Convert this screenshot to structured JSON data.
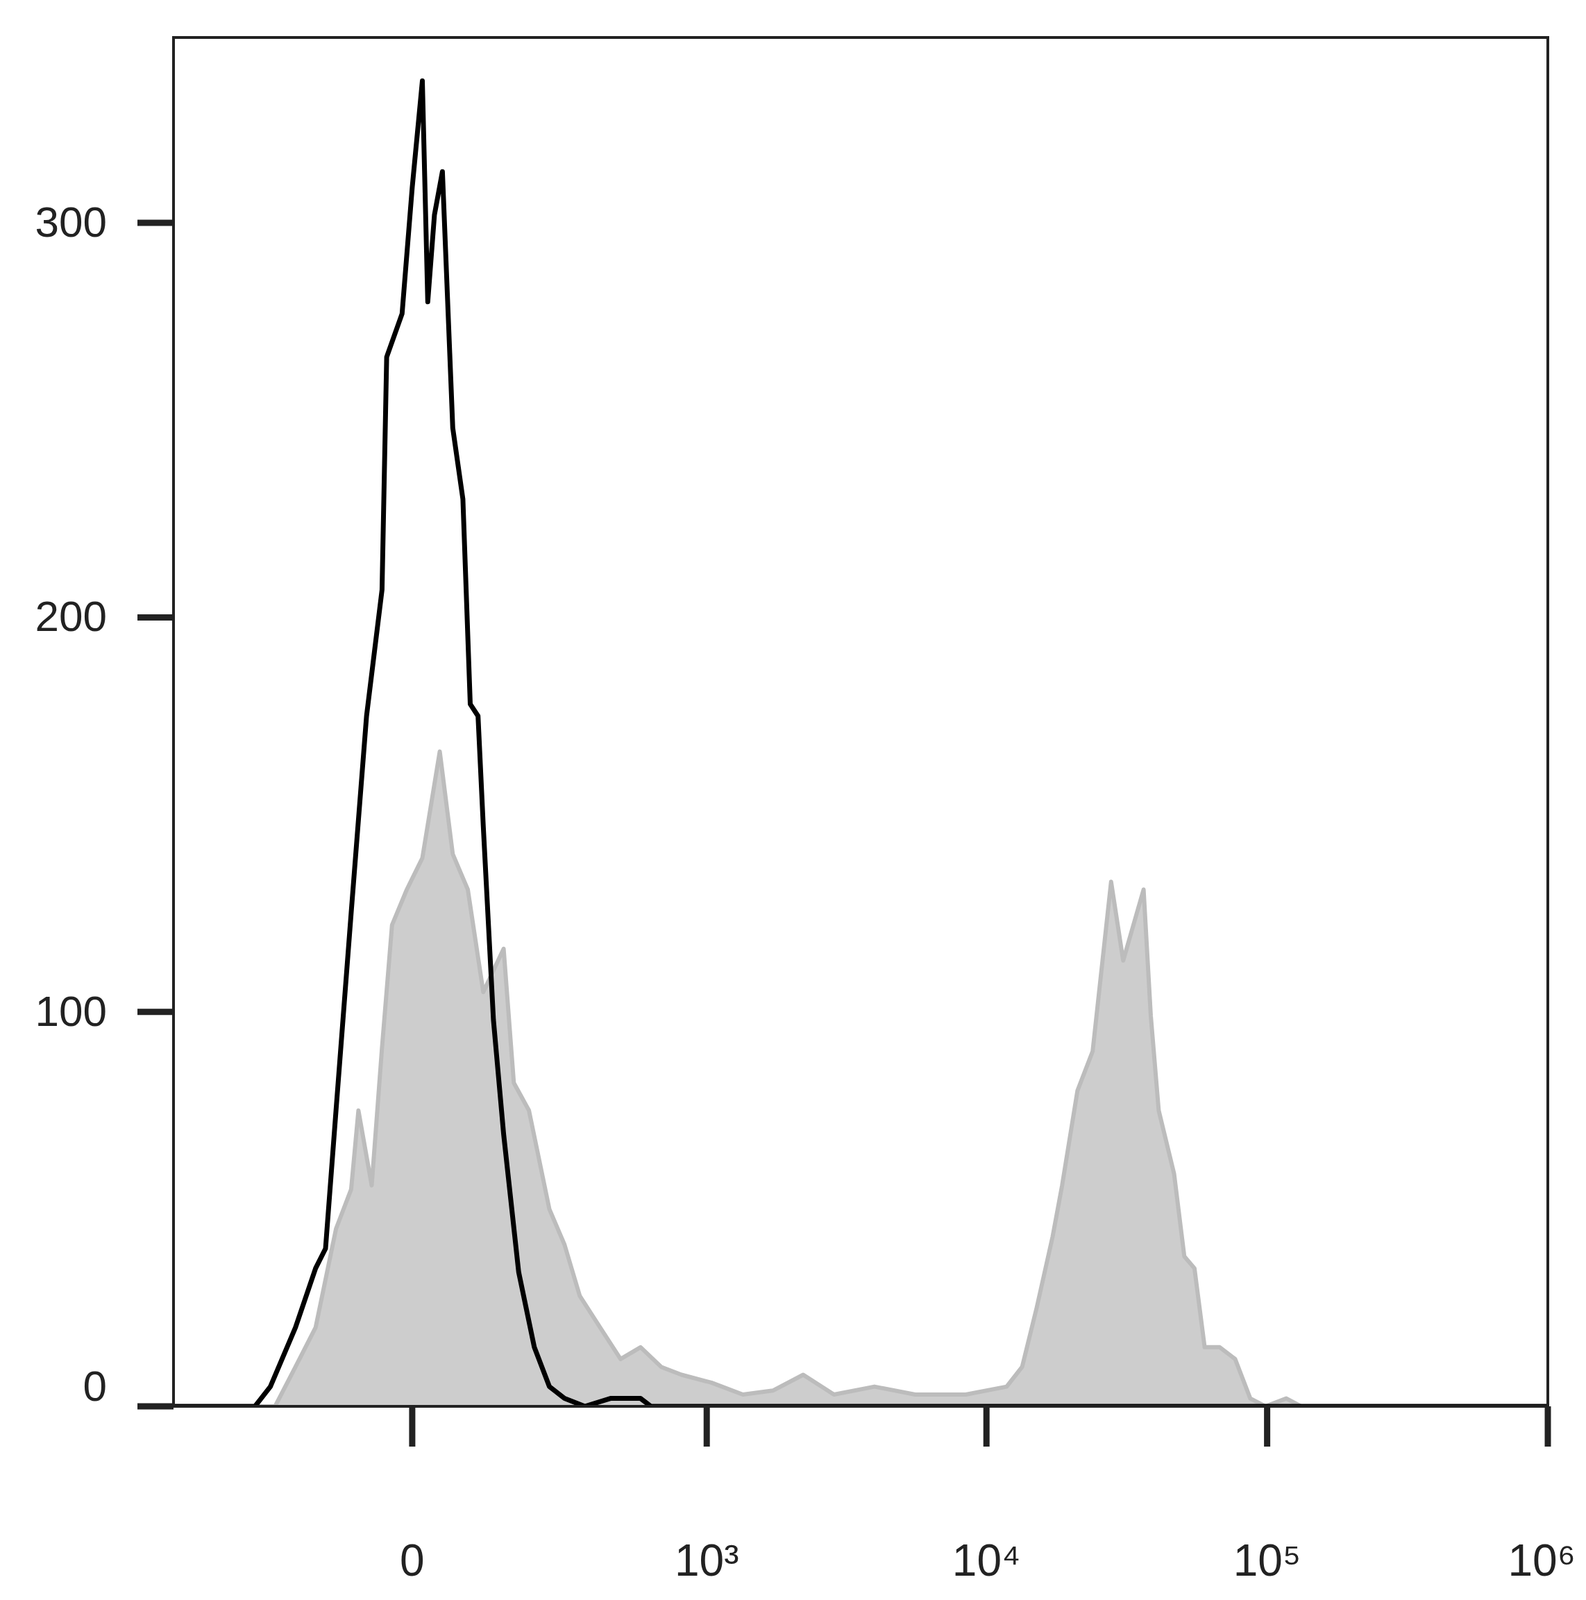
{
  "chart_data": {
    "type": "histogram",
    "log": "x",
    "xlim": [
      -625,
      1000000
    ],
    "ylim": [
      0,
      347
    ],
    "xticks": [
      0,
      {
        "value": 1000,
        "label": "10³"
      },
      {
        "value": 10000,
        "label": "10⁴"
      },
      {
        "value": 100000,
        "label": "10⁵"
      },
      {
        "value": 1000000,
        "label": "10⁶"
      }
    ],
    "yticks": [
      0,
      100,
      200,
      300
    ],
    "series": [
      {
        "type": "area",
        "color": "#bcbcbc",
        "x": [
          -625,
          -248,
          -200,
          -158,
          -120,
          -94,
          -82,
          -61,
          -45,
          -30,
          -8,
          15,
          41,
          61,
          85,
          111,
          148,
          168,
          200,
          248,
          288,
          333,
          401,
          481,
          572,
          682,
          810,
          1040,
          1350,
          1730,
          2220,
          2860,
          3990,
          5570,
          8440,
          11800,
          13400,
          15100,
          17200,
          18600,
          21100,
          23900,
          27800,
          30700,
          36300,
          38500,
          41100,
          46600,
          50700,
          55100,
          59900,
          67800,
          76900,
          87100,
          98600,
          117000,
          132000,
          1000000
        ],
        "values": [
          0,
          0,
          10,
          20,
          45,
          55,
          75,
          56,
          91,
          122,
          131,
          139,
          166,
          140,
          131,
          105,
          116,
          82,
          75,
          50,
          41,
          28,
          20,
          12,
          15,
          10,
          8,
          6,
          3,
          4,
          8,
          3,
          5,
          3,
          3,
          5,
          10,
          25,
          43,
          56,
          80,
          90,
          133,
          113,
          131,
          99,
          75,
          59,
          38,
          35,
          15,
          15,
          12,
          2,
          0,
          2,
          0,
          0
        ]
      },
      {
        "type": "line",
        "color": "#000000",
        "x": [
          -625,
          -302,
          -260,
          -200,
          -158,
          -139,
          -120,
          -94,
          -69,
          -45,
          -38,
          -15,
          0,
          15,
          23,
          33,
          45,
          61,
          77,
          89,
          102,
          111,
          129,
          148,
          178,
          212,
          248,
          288,
          349,
          440,
          572,
          625,
          682,
          1000000
        ],
        "values": [
          0,
          0,
          5,
          20,
          35,
          40,
          75,
          125,
          175,
          207,
          266,
          277,
          309,
          336,
          280,
          302,
          313,
          248,
          230,
          178,
          175,
          147,
          98,
          69,
          34,
          15,
          5,
          2,
          0,
          2,
          2,
          0,
          0,
          0
        ]
      }
    ]
  }
}
